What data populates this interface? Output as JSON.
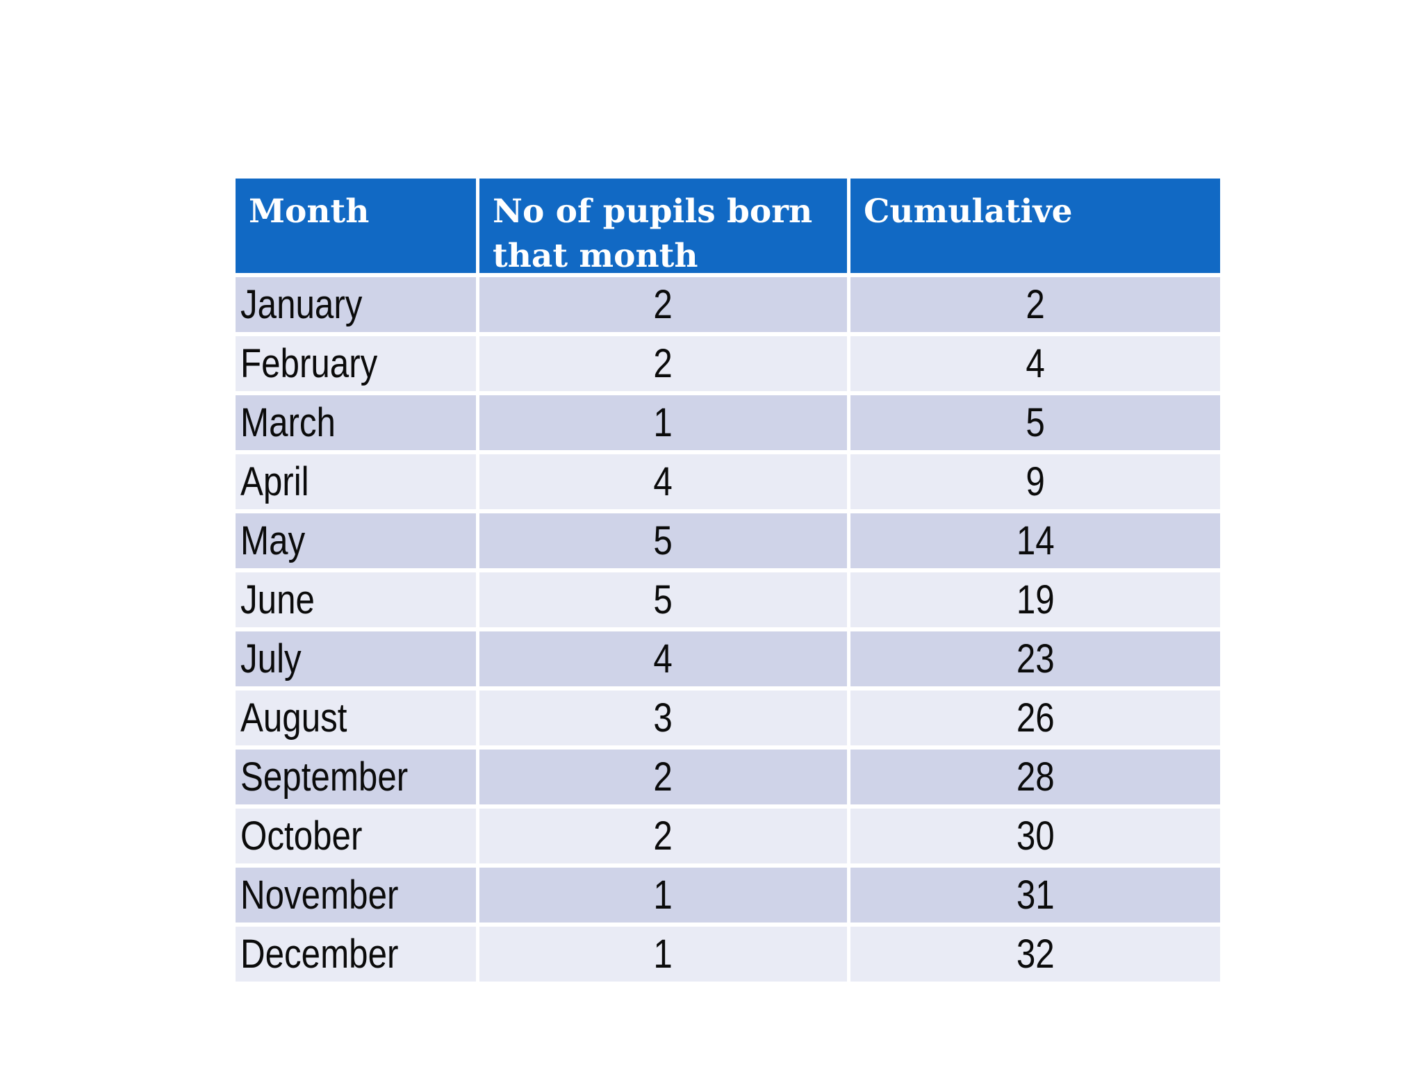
{
  "table": {
    "headers": [
      "Month",
      "No of pupils born that month",
      "Cumulative"
    ],
    "rows": [
      {
        "month": "January",
        "pupils": "2",
        "cumulative": "2"
      },
      {
        "month": "February",
        "pupils": "2",
        "cumulative": "4"
      },
      {
        "month": "March",
        "pupils": "1",
        "cumulative": "5"
      },
      {
        "month": "April",
        "pupils": "4",
        "cumulative": "9"
      },
      {
        "month": "May",
        "pupils": "5",
        "cumulative": "14"
      },
      {
        "month": "June",
        "pupils": "5",
        "cumulative": "19"
      },
      {
        "month": "July",
        "pupils": "4",
        "cumulative": "23"
      },
      {
        "month": "August",
        "pupils": "3",
        "cumulative": "26"
      },
      {
        "month": "September",
        "pupils": "2",
        "cumulative": "28"
      },
      {
        "month": "October",
        "pupils": "2",
        "cumulative": "30"
      },
      {
        "month": "November",
        "pupils": "1",
        "cumulative": "31"
      },
      {
        "month": "December",
        "pupils": "1",
        "cumulative": "32"
      }
    ]
  },
  "chart_data": {
    "type": "table",
    "title": "",
    "columns": [
      "Month",
      "No of pupils born that month",
      "Cumulative"
    ],
    "rows": [
      [
        "January",
        2,
        2
      ],
      [
        "February",
        2,
        4
      ],
      [
        "March",
        1,
        5
      ],
      [
        "April",
        4,
        9
      ],
      [
        "May",
        5,
        14
      ],
      [
        "June",
        5,
        19
      ],
      [
        "July",
        4,
        23
      ],
      [
        "August",
        3,
        26
      ],
      [
        "September",
        2,
        28
      ],
      [
        "October",
        2,
        30
      ],
      [
        "November",
        1,
        31
      ],
      [
        "December",
        1,
        32
      ]
    ],
    "layout_hints": {
      "header_align": "left",
      "month_column_align": "left",
      "number_columns_align": "center",
      "banding": "alternating rows, first data row dark"
    }
  },
  "colors": {
    "header_background": "#1169c4",
    "header_text": "#ffffff",
    "row_band_dark": "#cfd3e8",
    "row_band_light": "#e9ebf5",
    "body_text": "#0b0b0b",
    "page_background": "#ffffff",
    "grid_lines": "#ffffff"
  }
}
